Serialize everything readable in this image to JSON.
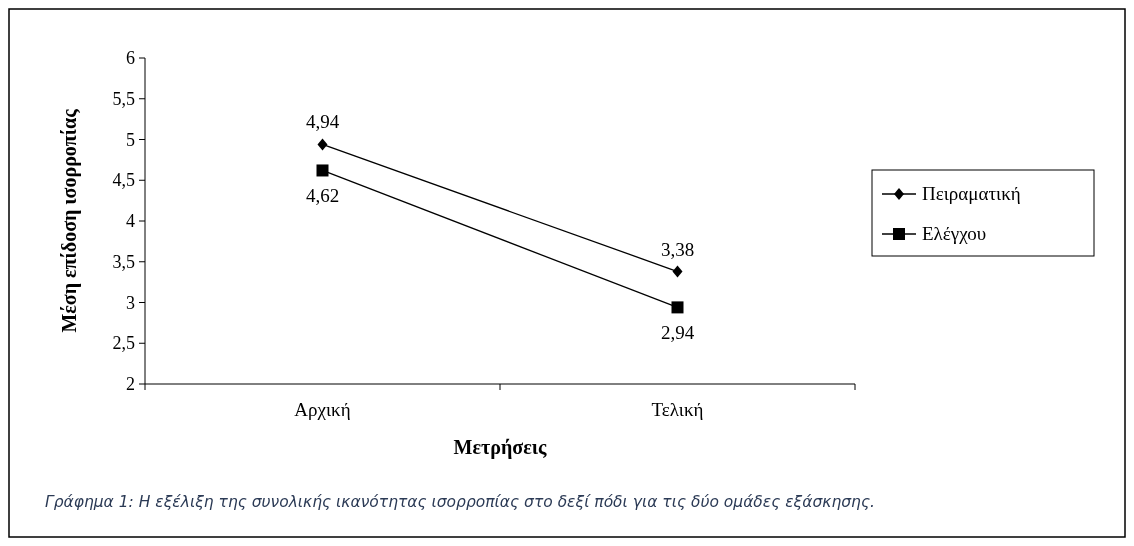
{
  "chart_data": {
    "type": "line",
    "xlabel": "Μετρήσεις",
    "ylabel": "Μέση επίδοση ισορροπίας",
    "categories": [
      "Αρχική",
      "Τελική"
    ],
    "series": [
      {
        "name": "Πειραματική",
        "color": "#000000",
        "marker": "diamond",
        "values": [
          4.94,
          3.38
        ],
        "value_labels": [
          "4,94",
          "3,38"
        ]
      },
      {
        "name": "Ελέγχου",
        "color": "#000000",
        "marker": "square",
        "values": [
          4.62,
          2.94
        ],
        "value_labels": [
          "4,62",
          "2,94"
        ]
      }
    ],
    "ylim": [
      2,
      6
    ],
    "yticks": [
      2,
      {
        "value": 2.5,
        "label": "2,5"
      },
      3,
      {
        "value": 3.5,
        "label": "3,5"
      },
      4,
      {
        "value": 4.5,
        "label": "4,5"
      },
      5,
      {
        "value": 5.5,
        "label": "5,5"
      },
      6
    ],
    "legend": "right",
    "grid": false,
    "line_style": "solid",
    "annotations": [
      "Γράφημα 1: Η εξέλιξη της συνολικής ικανότητας ισορροπίας στο δεξί πόδι για τις δύο ομάδες εξάσκησης."
    ]
  }
}
